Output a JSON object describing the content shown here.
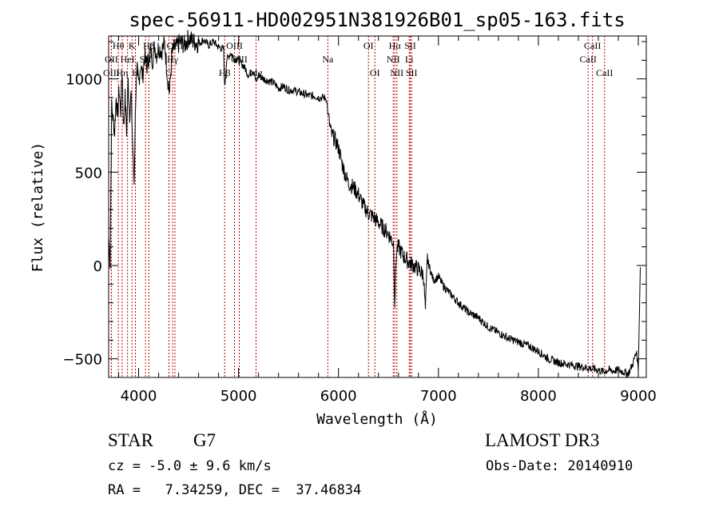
{
  "chart_data": {
    "type": "line",
    "title": "spec-56911-HD002951N381926B01_sp05-163.fits",
    "xlabel": "Wavelength (Å)",
    "ylabel": "Flux (relative)",
    "xlim": [
      3700,
      9080
    ],
    "ylim": [
      -600,
      1230
    ],
    "xticks": [
      4000,
      5000,
      6000,
      7000,
      8000,
      9000
    ],
    "yticks": [
      -500,
      0,
      500,
      1000
    ],
    "series": [
      {
        "name": "flux",
        "x": [
          3700,
          3715,
          3730,
          3745,
          3760,
          3775,
          3790,
          3805,
          3820,
          3835,
          3850,
          3865,
          3880,
          3895,
          3910,
          3925,
          3940,
          3955,
          3970,
          3985,
          4000,
          4020,
          4040,
          4060,
          4080,
          4100,
          4120,
          4140,
          4160,
          4180,
          4200,
          4230,
          4260,
          4290,
          4310,
          4330,
          4350,
          4380,
          4420,
          4460,
          4500,
          4550,
          4600,
          4650,
          4700,
          4750,
          4800,
          4850,
          4861,
          4880,
          4920,
          4960,
          5000,
          5050,
          5100,
          5150,
          5175,
          5200,
          5250,
          5300,
          5350,
          5400,
          5450,
          5500,
          5550,
          5600,
          5650,
          5700,
          5750,
          5800,
          5850,
          5880,
          5893,
          5910,
          5930,
          5960,
          6000,
          6030,
          6060,
          6100,
          6150,
          6200,
          6250,
          6300,
          6350,
          6400,
          6450,
          6500,
          6550,
          6563,
          6580,
          6600,
          6650,
          6700,
          6750,
          6800,
          6850,
          6870,
          6890,
          6900,
          6950,
          7000,
          7050,
          7100,
          7150,
          7200,
          7300,
          7400,
          7500,
          7600,
          7700,
          7800,
          7900,
          8000,
          8050,
          8100,
          8200,
          8300,
          8400,
          8500,
          8550,
          8600,
          8650,
          8700,
          8750,
          8800,
          8850,
          8900,
          8950,
          8980,
          9000,
          9020
        ],
        "values": [
          150,
          10,
          850,
          780,
          720,
          900,
          800,
          950,
          820,
          1050,
          730,
          900,
          720,
          990,
          810,
          920,
          650,
          440,
          900,
          1040,
          980,
          1080,
          1010,
          1120,
          1060,
          1110,
          1150,
          1100,
          1180,
          1130,
          1170,
          1150,
          1190,
          1010,
          920,
          1120,
          1160,
          1170,
          1200,
          1180,
          1220,
          1200,
          1190,
          1210,
          1180,
          1200,
          1170,
          1160,
          950,
          1100,
          1140,
          1110,
          1100,
          1070,
          1020,
          1050,
          980,
          1020,
          1000,
          990,
          980,
          950,
          960,
          940,
          940,
          930,
          920,
          910,
          910,
          900,
          900,
          895,
          820,
          760,
          700,
          680,
          630,
          560,
          500,
          440,
          420,
          380,
          320,
          280,
          260,
          230,
          200,
          170,
          120,
          -200,
          80,
          100,
          50,
          20,
          0,
          -20,
          -50,
          -240,
          40,
          10,
          -80,
          -60,
          -110,
          -140,
          -170,
          -200,
          -250,
          -280,
          -330,
          -360,
          -390,
          -410,
          -430,
          -460,
          -480,
          -500,
          -520,
          -530,
          -540,
          -550,
          -555,
          -560,
          -570,
          -560,
          -565,
          -560,
          -570,
          -580,
          -520,
          -460,
          -550,
          -10
        ]
      }
    ],
    "line_marks": [
      {
        "label": "Hθ",
        "x": 3797,
        "row": 1
      },
      {
        "label": "OII",
        "x": 3727,
        "row": 2
      },
      {
        "label": "OIII",
        "x": 3727,
        "row": 3
      },
      {
        "label": "K",
        "x": 3934,
        "row": 1
      },
      {
        "label": "HeI",
        "x": 3889,
        "row": 2
      },
      {
        "label": "Hη",
        "x": 3835,
        "row": 3
      },
      {
        "label": "SII",
        "x": 4069,
        "row": 2
      },
      {
        "label": "H",
        "x": 3968,
        "row": 3
      },
      {
        "label": "Hδ",
        "x": 4102,
        "row": 1
      },
      {
        "label": "OIII",
        "x": 4363,
        "row": 1
      },
      {
        "label": "Hγ",
        "x": 4340,
        "row": 2
      },
      {
        "label": "G",
        "x": 4304,
        "row": 3
      },
      {
        "label": "OIII",
        "x": 4959,
        "row": 1
      },
      {
        "label": "OIII",
        "x": 5007,
        "row": 2
      },
      {
        "label": "Hβ",
        "x": 4861,
        "row": 3
      },
      {
        "label": "Mg",
        "x": 5175,
        "row": 3
      },
      {
        "label": "Na",
        "x": 5893,
        "row": 2
      },
      {
        "label": "OI",
        "x": 6300,
        "row": 1
      },
      {
        "label": "OI",
        "x": 6364,
        "row": 3
      },
      {
        "label": "Hα",
        "x": 6563,
        "row": 1
      },
      {
        "label": "SII",
        "x": 6717,
        "row": 1
      },
      {
        "label": "NII",
        "x": 6548,
        "row": 2
      },
      {
        "label": "Li",
        "x": 6708,
        "row": 2
      },
      {
        "label": "NII",
        "x": 6584,
        "row": 3
      },
      {
        "label": "SII",
        "x": 6731,
        "row": 3
      },
      {
        "label": "CaII",
        "x": 8542,
        "row": 1
      },
      {
        "label": "CaII",
        "x": 8498,
        "row": 2
      },
      {
        "label": "CaII",
        "x": 8662,
        "row": 3
      }
    ]
  },
  "info": {
    "object_type": "STAR",
    "subclass": "G7",
    "survey": "LAMOST DR3",
    "cz_line": "cz = -5.0 ± 9.6 km/s",
    "obs_date": "Obs-Date: 20140910",
    "radec": "RA =   7.34259, DEC =  37.46834"
  }
}
